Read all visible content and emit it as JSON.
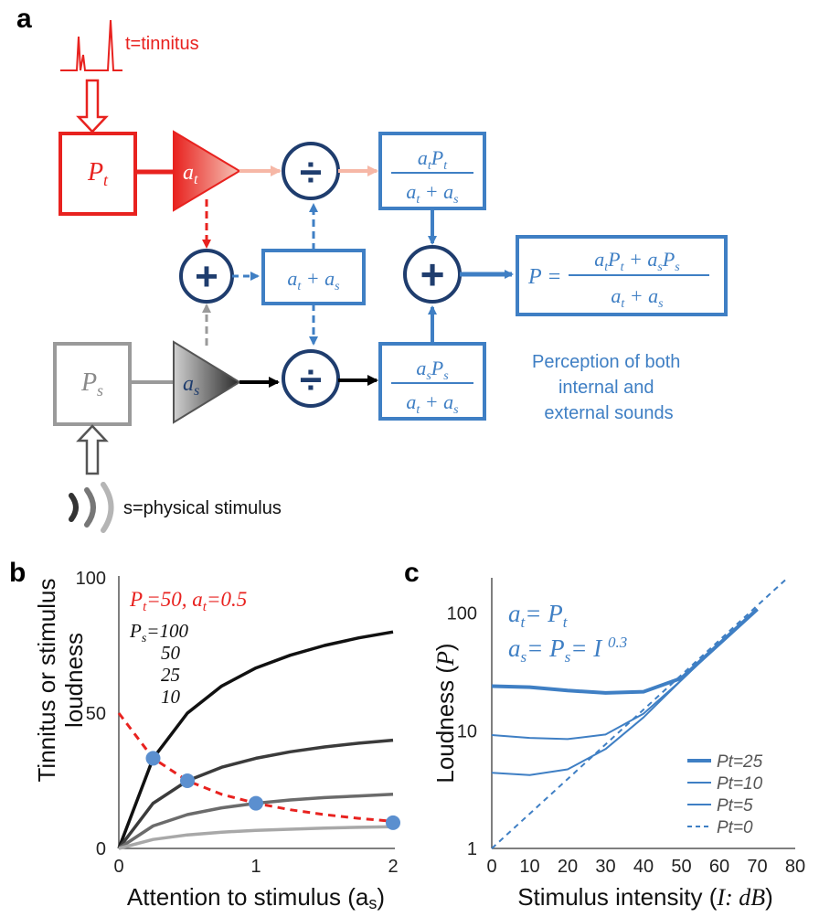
{
  "panel_a": {
    "label": "a",
    "tinnitus_label": "t=tinnitus",
    "stimulus_label": "s=physical stimulus",
    "perception_caption": [
      "Perception of both",
      "internal and",
      "external sounds"
    ],
    "colors": {
      "red": "#e8221f",
      "blue": "#3f7fc4",
      "darkblue": "#1f3d6e",
      "gray": "#9a9a9a",
      "salmon": "#f6b7a6"
    }
  },
  "panel_b": {
    "label": "b",
    "annotation_red": "Pt=50, at=0.5",
    "ps_labels": [
      "Ps=100",
      "50",
      "25",
      "10"
    ],
    "chart_data": {
      "type": "line",
      "xlabel": "Attention to stimulus (as)",
      "ylabel": "Tinnitus or stimulus loudness",
      "xlim": [
        0,
        2
      ],
      "ylim": [
        0,
        100
      ],
      "xticks": [
        "0",
        "1",
        "2"
      ],
      "yticks": [
        "0",
        "50",
        "100"
      ],
      "x": [
        0,
        0.25,
        0.5,
        0.75,
        1,
        1.25,
        1.5,
        1.75,
        2
      ],
      "series": [
        {
          "name": "Ps=100",
          "values": [
            0,
            33.3,
            50,
            60,
            66.7,
            71.4,
            75,
            77.8,
            80
          ],
          "color": "#111111"
        },
        {
          "name": "50",
          "values": [
            0,
            16.7,
            25,
            30,
            33.3,
            35.7,
            37.5,
            38.9,
            40
          ],
          "color": "#3b3b3b"
        },
        {
          "name": "25",
          "values": [
            0,
            8.3,
            12.5,
            15,
            16.7,
            17.9,
            18.8,
            19.4,
            20
          ],
          "color": "#6b6b6b"
        },
        {
          "name": "10",
          "values": [
            0,
            3.3,
            5,
            6,
            6.7,
            7.1,
            7.5,
            7.8,
            8
          ],
          "color": "#a8a8a8"
        },
        {
          "name": "Pt=50, at=0.5",
          "values": [
            50,
            33.3,
            25,
            20,
            16.7,
            14.3,
            12.5,
            11.1,
            10
          ],
          "color": "#e8221f",
          "dashed": true
        }
      ],
      "points": [
        {
          "x": 0.25,
          "y": 33.3
        },
        {
          "x": 0.5,
          "y": 25
        },
        {
          "x": 1,
          "y": 16.7
        },
        {
          "x": 2,
          "y": 9.5
        }
      ]
    }
  },
  "panel_c": {
    "label": "c",
    "eq1": "at= Pt",
    "eq2": "as= Ps= I 0.3",
    "chart_data": {
      "type": "line",
      "xlabel": "Stimulus intensity (I: dB)",
      "ylabel": "Loudness (P)",
      "xlim": [
        0,
        80
      ],
      "ylim": [
        1,
        200
      ],
      "yscale": "log",
      "xticks": [
        "0",
        "10",
        "20",
        "30",
        "40",
        "50",
        "60",
        "70",
        "80"
      ],
      "yticks": [
        "1",
        "10",
        "100"
      ],
      "legend": "bottom-right",
      "series": [
        {
          "name": "Pt=25",
          "x": [
            0,
            10,
            20,
            30,
            40,
            50,
            60,
            70
          ],
          "values": [
            24,
            23.5,
            22,
            21,
            21.5,
            28,
            55,
            108
          ],
          "width": 4
        },
        {
          "name": "Pt=10",
          "x": [
            0,
            10,
            20,
            30,
            40,
            50,
            60,
            70
          ],
          "values": [
            9.2,
            8.7,
            8.5,
            9.3,
            14,
            27,
            55,
            108
          ],
          "width": 2
        },
        {
          "name": "Pt=5",
          "x": [
            0,
            10,
            20,
            30,
            40,
            50,
            60,
            70
          ],
          "values": [
            4.4,
            4.2,
            4.7,
            7,
            13,
            27,
            55,
            108
          ],
          "width": 2
        },
        {
          "name": "Pt=0",
          "x": [
            0,
            78
          ],
          "values": [
            1,
            200
          ],
          "width": 2,
          "dashed": true
        }
      ]
    }
  }
}
